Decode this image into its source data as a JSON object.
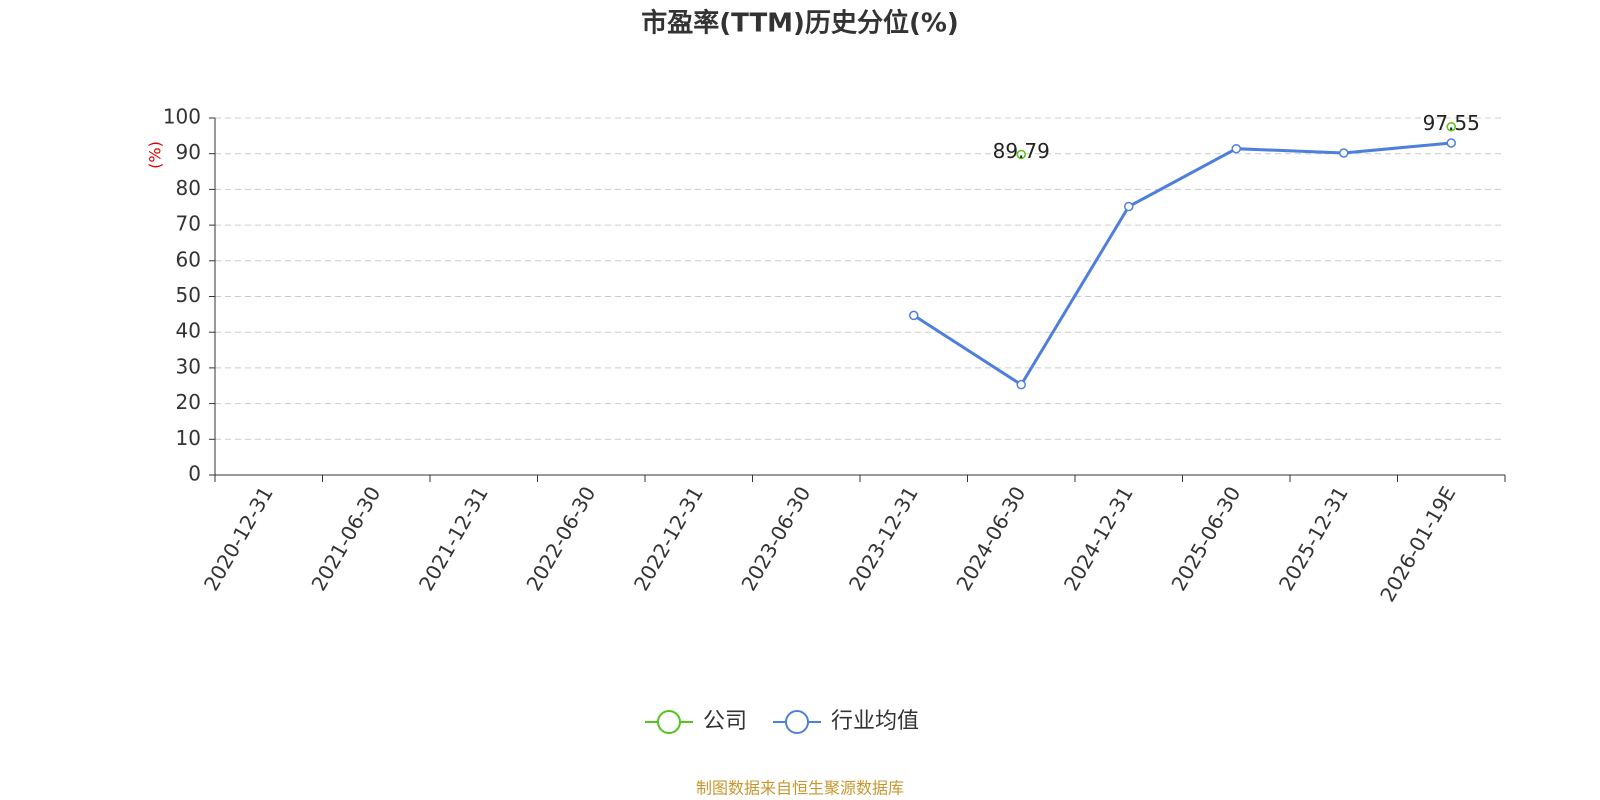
{
  "chart_data": {
    "type": "line",
    "title": "市盈率(TTM)历史分位(%)",
    "y_label": "(%)",
    "source": "制图数据来自恒生聚源数据库",
    "categories": [
      "2020-12-31",
      "2021-06-30",
      "2021-12-31",
      "2022-06-30",
      "2022-12-31",
      "2023-06-30",
      "2023-12-31",
      "2024-06-30",
      "2024-12-31",
      "2025-06-30",
      "2025-12-31",
      "2026-01-19E"
    ],
    "series": [
      {
        "name": "公司",
        "color": "#52c41a",
        "values": [
          null,
          null,
          null,
          null,
          null,
          null,
          null,
          89.79,
          null,
          null,
          null,
          97.55
        ],
        "show_labels": true
      },
      {
        "name": "行业均值",
        "color": "#4e7fdb",
        "values": [
          null,
          null,
          null,
          null,
          null,
          null,
          44.7,
          25.3,
          75.2,
          91.4,
          90.2,
          93.0
        ],
        "show_labels": false
      }
    ],
    "ylim": [
      0,
      100
    ],
    "yticks": [
      0,
      10,
      20,
      30,
      40,
      50,
      60,
      70,
      80,
      90,
      100
    ],
    "grid": true,
    "legend": "bottom"
  }
}
